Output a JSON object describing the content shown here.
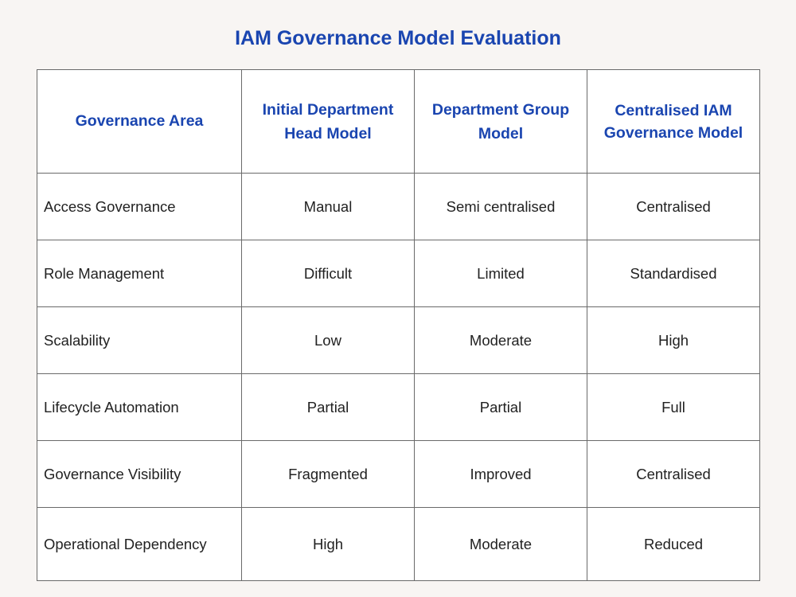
{
  "title": "IAM Governance Model Evaluation",
  "columns": [
    "Governance Area",
    "Initial Department Head Model",
    "Department Group Model",
    "Centralised IAM Governance Model"
  ],
  "rows": [
    [
      "Access Governance",
      "Manual",
      "Semi centralised",
      "Centralised"
    ],
    [
      "Role Management",
      "Difficult",
      "Limited",
      "Standardised"
    ],
    [
      "Scalability",
      "Low",
      "Moderate",
      "High"
    ],
    [
      "Lifecycle Automation",
      "Partial",
      "Partial",
      "Full"
    ],
    [
      "Governance Visibility",
      "Fragmented",
      "Improved",
      "Centralised"
    ],
    [
      "Operational Dependency",
      "High",
      "Moderate",
      "Reduced"
    ]
  ],
  "colors": {
    "accent": "#1a45b0",
    "background": "#f8f5f3",
    "border": "#6a6a6a"
  }
}
